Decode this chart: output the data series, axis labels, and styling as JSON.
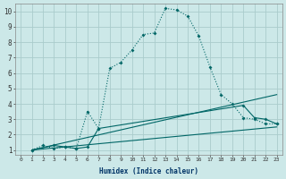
{
  "xlabel": "Humidex (Indice chaleur)",
  "bg_color": "#cce8e8",
  "line_color": "#006666",
  "grid_color": "#aacccc",
  "xlim": [
    -0.5,
    23.5
  ],
  "ylim": [
    0.7,
    10.5
  ],
  "xticks": [
    0,
    1,
    2,
    3,
    4,
    5,
    6,
    7,
    8,
    9,
    10,
    11,
    12,
    13,
    14,
    15,
    16,
    17,
    18,
    19,
    20,
    21,
    22,
    23
  ],
  "yticks": [
    1,
    2,
    3,
    4,
    5,
    6,
    7,
    8,
    9,
    10
  ],
  "series1_x": [
    1,
    2,
    3,
    4,
    5,
    6,
    7,
    8,
    9,
    10,
    11,
    12,
    13,
    14,
    15,
    16,
    17,
    18,
    19,
    20,
    21,
    22,
    23
  ],
  "series1_y": [
    1.0,
    1.3,
    1.1,
    1.2,
    1.1,
    3.5,
    2.4,
    6.3,
    6.7,
    7.5,
    8.5,
    8.6,
    10.2,
    10.1,
    9.7,
    8.4,
    6.4,
    4.6,
    4.0,
    3.1,
    3.0,
    2.7,
    2.7
  ],
  "series2_x": [
    1,
    3,
    4,
    5,
    6,
    7,
    20,
    21,
    22,
    23
  ],
  "series2_y": [
    1.0,
    1.3,
    1.2,
    1.1,
    1.2,
    2.4,
    3.9,
    3.1,
    3.0,
    2.7
  ],
  "line1_x": [
    1,
    23
  ],
  "line1_y": [
    1.0,
    4.6
  ],
  "line2_x": [
    1,
    23
  ],
  "line2_y": [
    1.0,
    2.5
  ]
}
